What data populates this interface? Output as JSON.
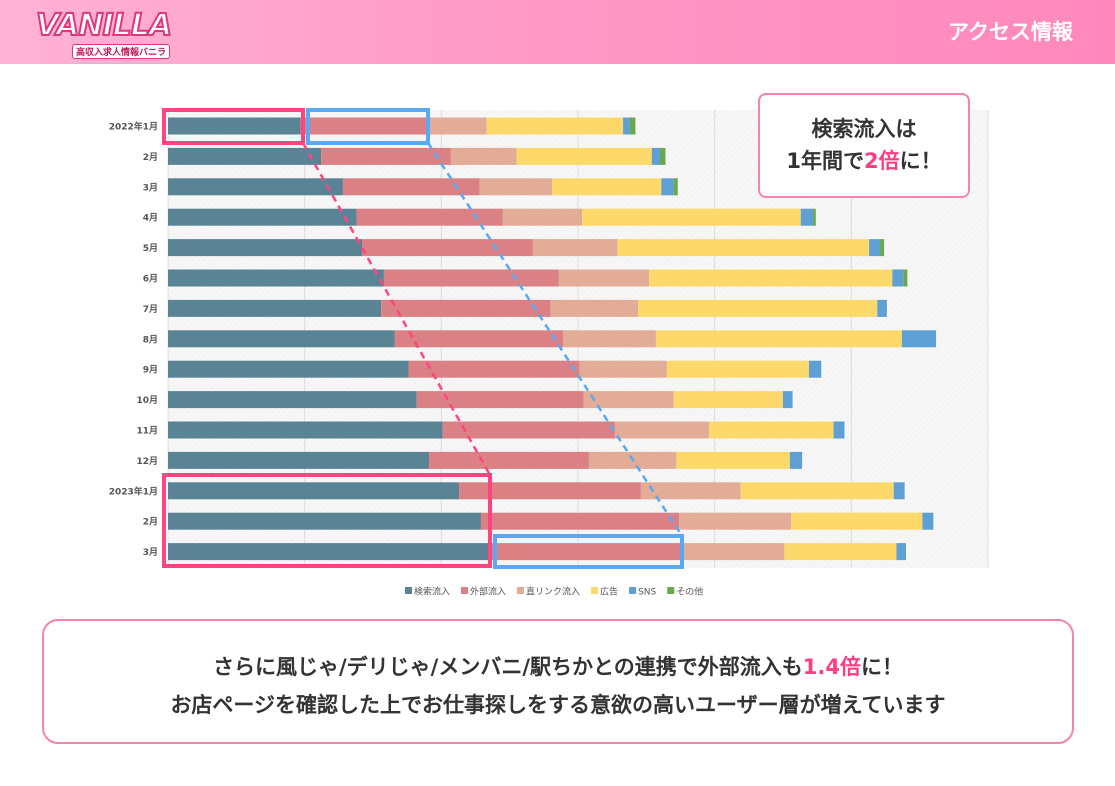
{
  "header": {
    "logo_text": "VANILLA",
    "logo_sub": "高収入求人情報バニラ",
    "title": "アクセス情報"
  },
  "callout": {
    "line1": "検索流入は",
    "line2_pre": "1年間で",
    "line2_hl": "2倍",
    "line2_post": "に！"
  },
  "bottom": {
    "line1_pre": "さらに風じゃ/デリじゃ/メンバニ/駅ちかとの連携で外部流入も",
    "line1_hl": "1.4倍",
    "line1_post": "に！",
    "line2": "お店ページを確認した上でお仕事探しをする意欲の高いユーザー層が増えています"
  },
  "colors": {
    "accent": "#ff3d86",
    "highlight_blue": "#5aa9f5"
  },
  "chart_data": {
    "type": "bar",
    "orientation": "horizontal",
    "stacked": true,
    "grid": true,
    "legend": "bottom",
    "xlim": [
      0,
      600
    ],
    "categories": [
      "2022年1月",
      "2月",
      "3月",
      "4月",
      "5月",
      "6月",
      "7月",
      "8月",
      "9月",
      "10月",
      "11月",
      "12月",
      "2023年1月",
      "2月",
      "3月"
    ],
    "series": [
      {
        "name": "検索流入",
        "color": "#5a8496",
        "values": [
          97,
          112,
          128,
          138,
          142,
          158,
          156,
          166,
          176,
          182,
          201,
          191,
          213,
          229,
          235
        ]
      },
      {
        "name": "外部流入",
        "color": "#db8084",
        "values": [
          92,
          95,
          100,
          107,
          125,
          128,
          124,
          123,
          125,
          122,
          126,
          117,
          133,
          145,
          140
        ]
      },
      {
        "name": "直リンク流入",
        "color": "#e2ac96",
        "values": [
          44,
          48,
          53,
          58,
          62,
          66,
          64,
          68,
          64,
          66,
          69,
          64,
          73,
          82,
          76
        ]
      },
      {
        "name": "広告",
        "color": "#fdd96b",
        "values": [
          100,
          99,
          80,
          160,
          184,
          178,
          175,
          180,
          104,
          80,
          91,
          83,
          112,
          96,
          82
        ]
      },
      {
        "name": "SNS",
        "color": "#5e9fd4",
        "values": [
          5,
          6,
          9,
          9,
          8,
          8,
          7,
          25,
          9,
          7,
          8,
          9,
          8,
          8,
          7
        ]
      },
      {
        "name": "その他",
        "color": "#6aa84f",
        "values": [
          4,
          4,
          3,
          2,
          3,
          3,
          0,
          0,
          0,
          0,
          0,
          0,
          0,
          0,
          0
        ]
      }
    ]
  }
}
